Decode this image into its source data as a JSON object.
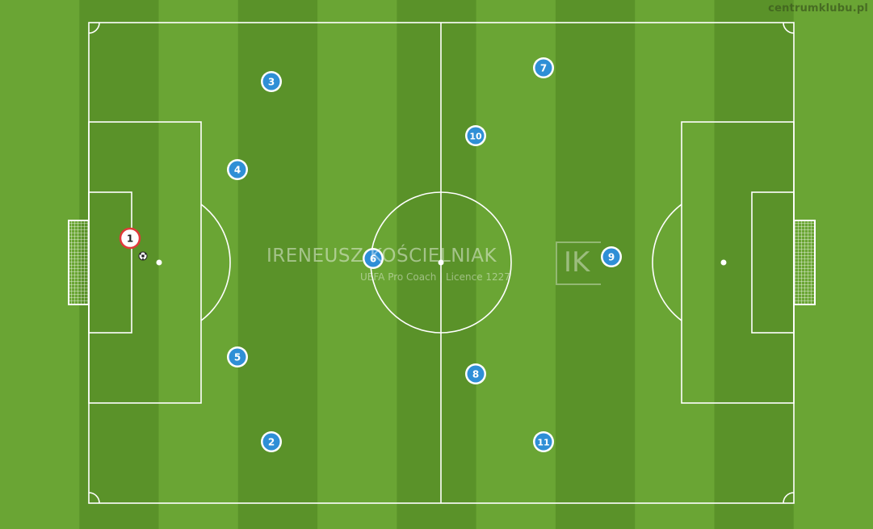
{
  "site_credit": "centrumklubu.pl",
  "watermark": {
    "name": "IRENEUSZ KOŚCIELNIAK",
    "subtitle": "UEFA Pro Coach   |   Licence 1227",
    "logo": "IK"
  },
  "colors": {
    "grass_light": "#6aa534",
    "grass_dark": "#5a9229",
    "lines": "#ffffff",
    "player_blue": "#2f8fd6",
    "goalkeeper_red": "#e03a3a"
  },
  "goalkeeper": {
    "number": "1"
  },
  "players": [
    {
      "number": "2"
    },
    {
      "number": "3"
    },
    {
      "number": "4"
    },
    {
      "number": "5"
    },
    {
      "number": "6"
    },
    {
      "number": "7"
    },
    {
      "number": "8"
    },
    {
      "number": "9"
    },
    {
      "number": "10"
    },
    {
      "number": "11"
    }
  ],
  "ball": {
    "icon": "soccer-ball-icon"
  }
}
